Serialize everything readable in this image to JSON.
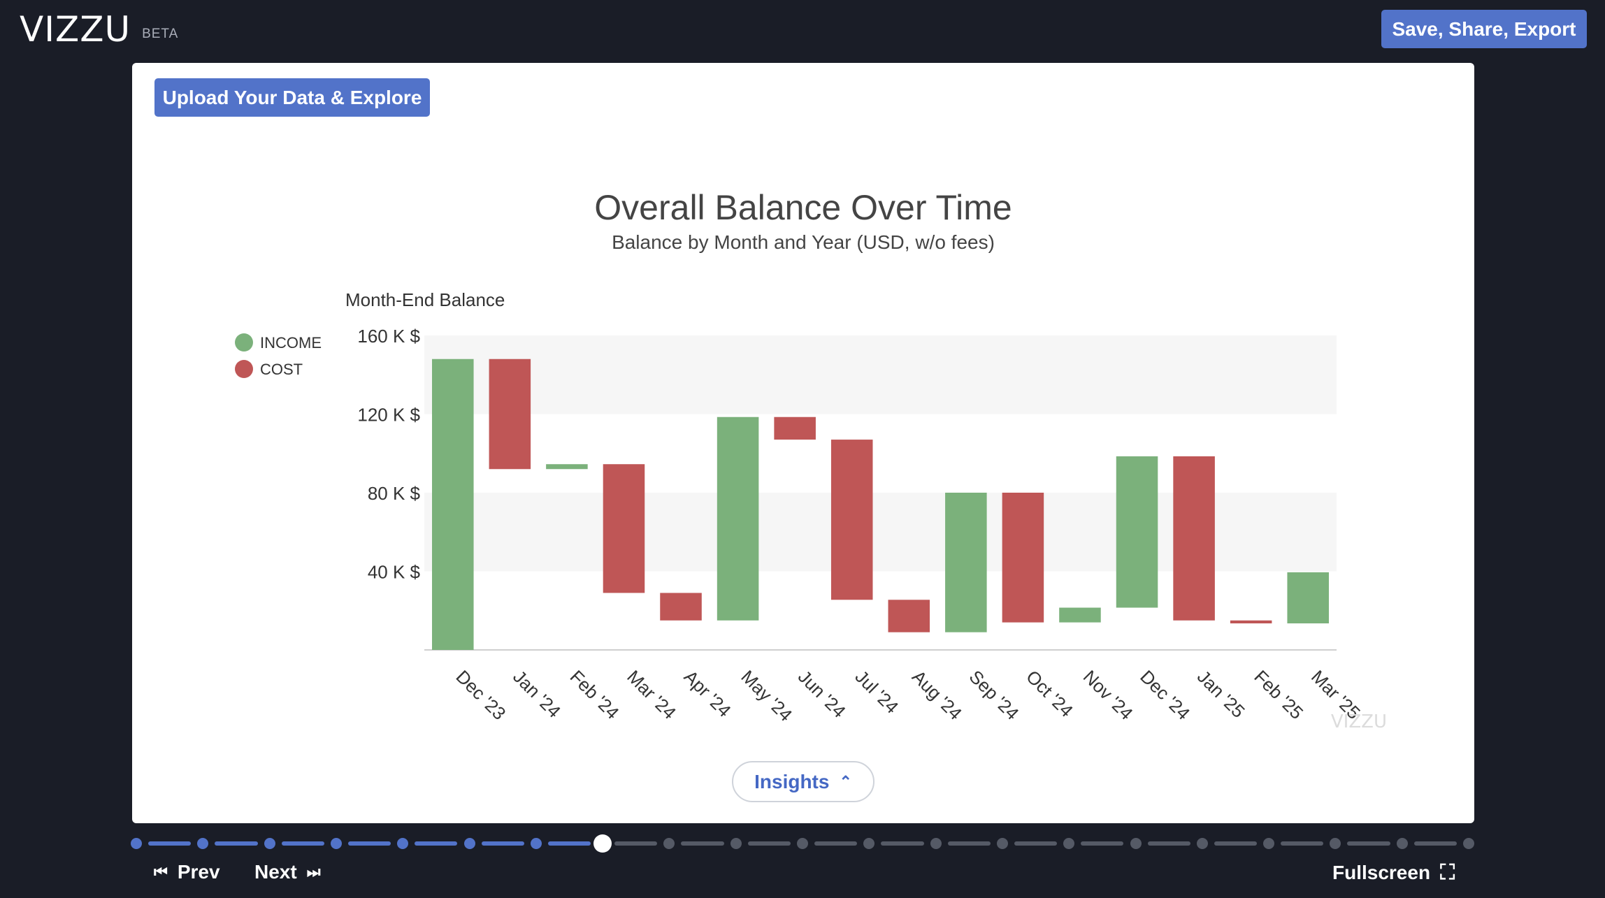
{
  "header": {
    "logo": "VIZZU",
    "beta": "BETA",
    "save_label": "Save, Share, Export"
  },
  "panel": {
    "upload_label": "Upload Your Data & Explore",
    "insights_label": "Insights",
    "watermark": "VIZZU"
  },
  "footer": {
    "prev_label": "Prev",
    "next_label": "Next",
    "fullscreen_label": "Fullscreen"
  },
  "progress": {
    "total_steps": 21,
    "current_step": 7
  },
  "icons": {
    "prev": "skip-back-icon",
    "next": "skip-forward-icon",
    "fullscreen": "expand-icon",
    "insights": "chevron-up-icon"
  },
  "colors": {
    "income": "#7bb17b",
    "cost": "#bf5656",
    "accent": "#5273c9",
    "background": "#1a1d27"
  },
  "chart_data": {
    "type": "bar",
    "subtype": "waterfall",
    "title": "Overall Balance Over Time",
    "subtitle": "Balance by Month and Year (USD, w/o fees)",
    "ylabel": "Month-End Balance",
    "xlabel": "",
    "ylim": [
      0,
      160000
    ],
    "yticks": [
      {
        "value": 160000,
        "label": "160 K $"
      },
      {
        "value": 120000,
        "label": "120 K $"
      },
      {
        "value": 80000,
        "label": "80 K $"
      },
      {
        "value": 40000,
        "label": "40 K $"
      }
    ],
    "grid": "alternating bands",
    "legend_position": "left",
    "legend": [
      {
        "name": "INCOME",
        "color": "#7bb17b"
      },
      {
        "name": "COST",
        "color": "#bf5656"
      }
    ],
    "categories": [
      "Dec '23",
      "Jan '24",
      "Feb '24",
      "Mar '24",
      "Apr '24",
      "May '24",
      "Jun '24",
      "Jul '24",
      "Aug '24",
      "Sep '24",
      "Oct '24",
      "Nov '24",
      "Dec '24",
      "Jan '25",
      "Feb '25",
      "Mar '25"
    ],
    "bars": [
      {
        "type": "INCOME",
        "start": 0,
        "end": 148000
      },
      {
        "type": "COST",
        "start": 148000,
        "end": 92000
      },
      {
        "type": "INCOME",
        "start": 92000,
        "end": 94500
      },
      {
        "type": "COST",
        "start": 94500,
        "end": 29000
      },
      {
        "type": "COST",
        "start": 29000,
        "end": 15000
      },
      {
        "type": "INCOME",
        "start": 15000,
        "end": 118500
      },
      {
        "type": "COST",
        "start": 118500,
        "end": 107000
      },
      {
        "type": "COST",
        "start": 107000,
        "end": 25500
      },
      {
        "type": "COST",
        "start": 25500,
        "end": 9000
      },
      {
        "type": "INCOME",
        "start": 9000,
        "end": 80000
      },
      {
        "type": "COST",
        "start": 80000,
        "end": 14000
      },
      {
        "type": "INCOME",
        "start": 14000,
        "end": 21500
      },
      {
        "type": "INCOME",
        "start": 21500,
        "end": 98500
      },
      {
        "type": "COST",
        "start": 98500,
        "end": 15000
      },
      {
        "type": "COST",
        "start": 15000,
        "end": 13500
      },
      {
        "type": "INCOME",
        "start": 13500,
        "end": 39500
      }
    ]
  }
}
